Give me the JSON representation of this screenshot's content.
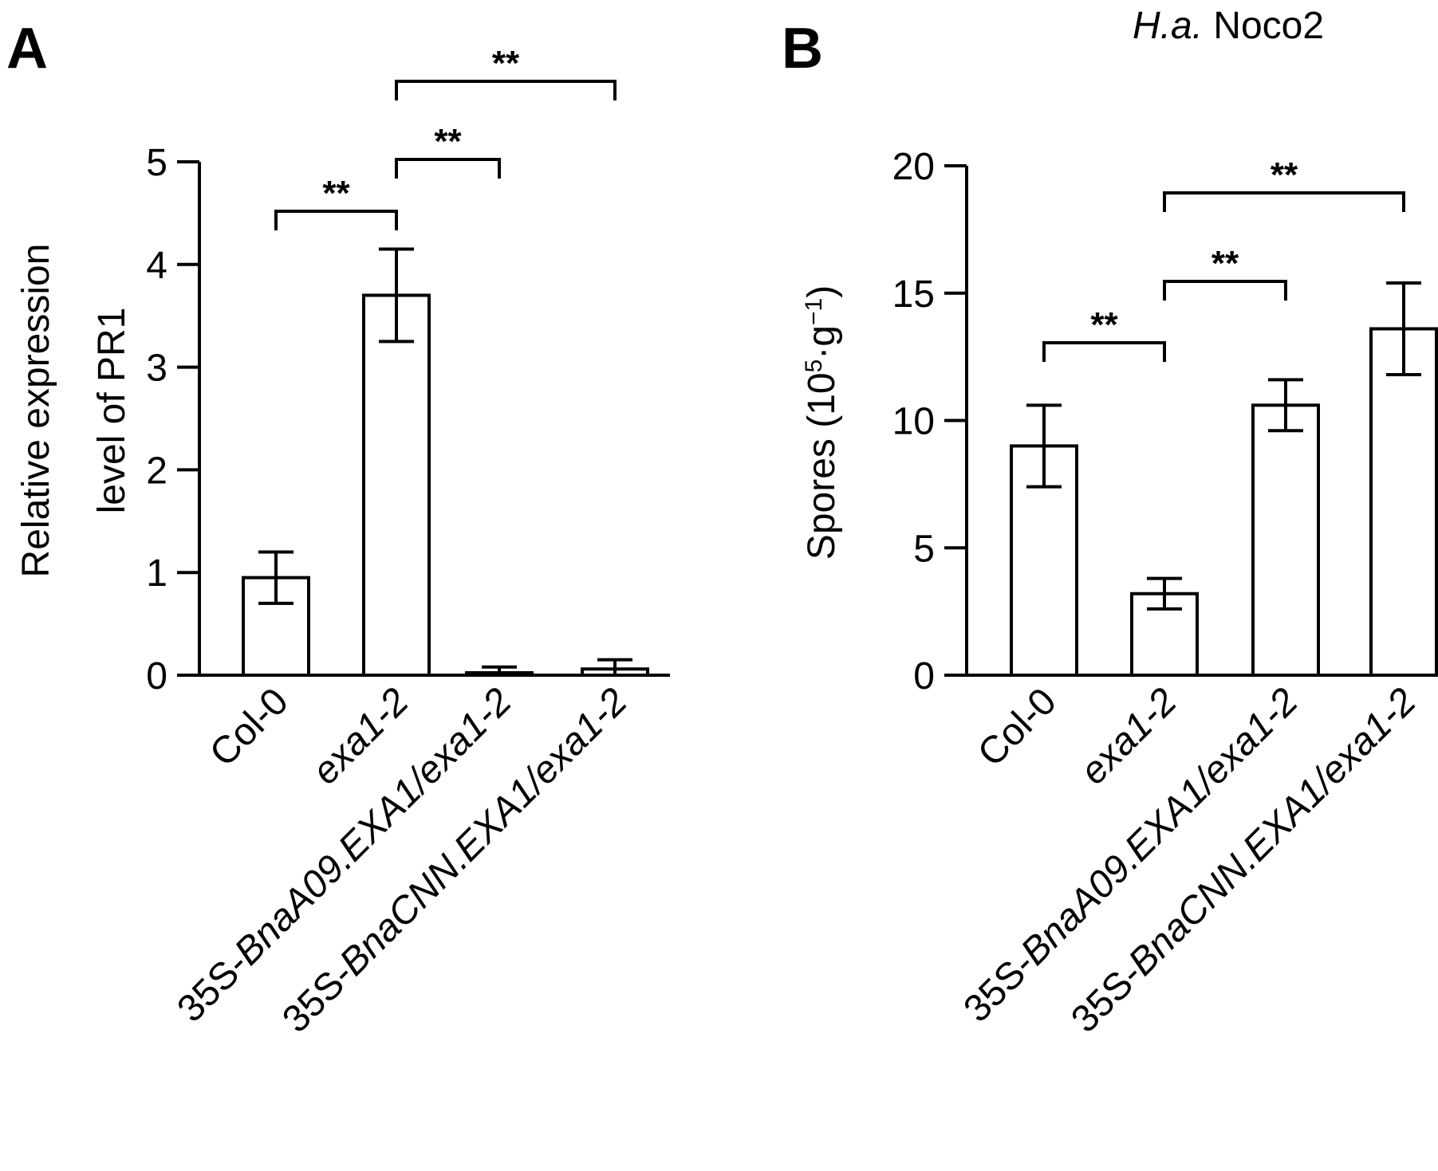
{
  "chart_data": [
    {
      "type": "bar",
      "panel": "A",
      "categories": [
        "Col-0",
        "exa1-2",
        "35S-BnaA09.EXA1/exa1-2",
        "35S-BnaCNN.EXA1/exa1-2"
      ],
      "category_parts": [
        [
          {
            "text": "Col-0",
            "italic": false
          }
        ],
        [
          {
            "text": "exa1-2",
            "italic": true
          }
        ],
        [
          {
            "text": "35S-",
            "italic": false
          },
          {
            "text": "BnaA09.EXA1/exa1-2",
            "italic": true
          }
        ],
        [
          {
            "text": "35S-",
            "italic": false
          },
          {
            "text": "BnaCNN.EXA1/exa1-2",
            "italic": true
          }
        ]
      ],
      "values": [
        0.95,
        3.7,
        0.02,
        0.06
      ],
      "errors": [
        0.25,
        0.45,
        0.06,
        0.09
      ],
      "ylabel_lines": [
        "Relative expression",
        "level of  PR1"
      ],
      "ylim": [
        0,
        5
      ],
      "yticks": [
        0,
        1,
        2,
        3,
        4,
        5
      ],
      "significance": [
        {
          "from": 0,
          "to": 1,
          "label": "**"
        },
        {
          "from": 1,
          "to": 2,
          "label": "**"
        },
        {
          "from": 1,
          "to": 3,
          "label": "**"
        }
      ]
    },
    {
      "type": "bar",
      "panel": "B",
      "title_parts": [
        {
          "text": "H.a.",
          "italic": true
        },
        {
          "text": " Noco2",
          "italic": false
        }
      ],
      "categories": [
        "Col-0",
        "exa1-2",
        "35S-BnaA09.EXA1/exa1-2",
        "35S-BnaCNN.EXA1/exa1-2"
      ],
      "category_parts": [
        [
          {
            "text": "Col-0",
            "italic": false
          }
        ],
        [
          {
            "text": "exa1-2",
            "italic": true
          }
        ],
        [
          {
            "text": "35S-",
            "italic": false
          },
          {
            "text": "BnaA09.EXA1/exa1-2",
            "italic": true
          }
        ],
        [
          {
            "text": "35S-",
            "italic": false
          },
          {
            "text": "BnaCNN.EXA1/exa1-2",
            "italic": true
          }
        ]
      ],
      "values": [
        9.0,
        3.2,
        10.6,
        13.6
      ],
      "errors": [
        1.6,
        0.6,
        1.0,
        1.8
      ],
      "ylabel_parts": [
        {
          "text": "Spores (10",
          "sup": false
        },
        {
          "text": "5",
          "sup": true
        },
        {
          "text": "·g",
          "sup": false
        },
        {
          "text": "−1",
          "sup": true
        },
        {
          "text": ")",
          "sup": false
        }
      ],
      "ylim": [
        0,
        20
      ],
      "yticks": [
        0,
        5,
        10,
        15,
        20
      ],
      "significance": [
        {
          "from": 0,
          "to": 1,
          "label": "**"
        },
        {
          "from": 1,
          "to": 2,
          "label": "**"
        },
        {
          "from": 1,
          "to": 3,
          "label": "**"
        }
      ]
    }
  ]
}
